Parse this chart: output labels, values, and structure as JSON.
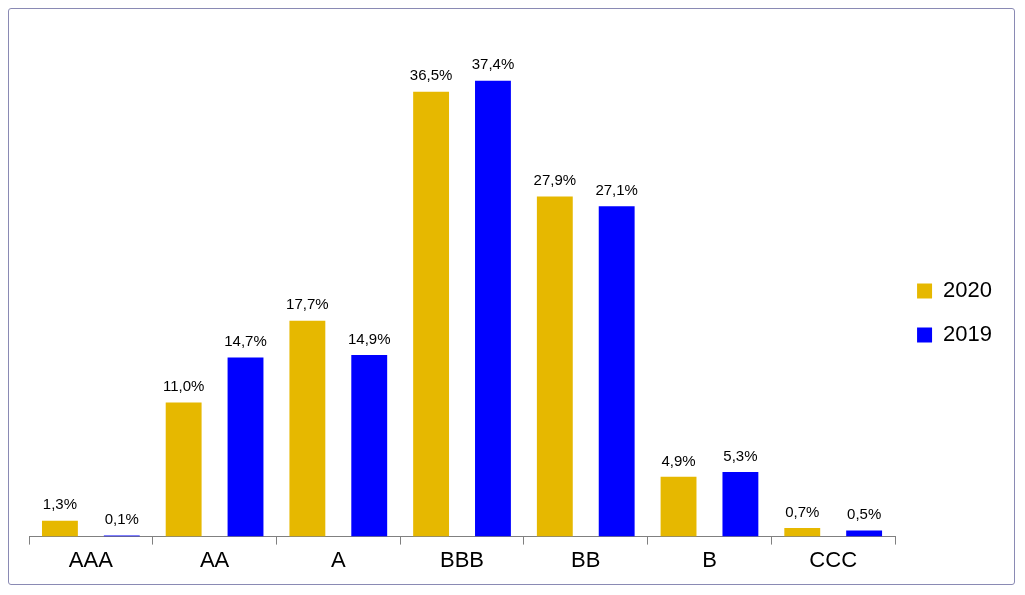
{
  "chart_data": {
    "type": "bar",
    "categories": [
      "AAA",
      "AA",
      "A",
      "BBB",
      "BB",
      "B",
      "CCC"
    ],
    "series": [
      {
        "name": "2020",
        "color": "#e6b800",
        "values": [
          1.3,
          11.0,
          17.7,
          36.5,
          27.9,
          4.9,
          0.7
        ],
        "value_labels": [
          "1,3%",
          "11,0%",
          "17,7%",
          "36,5%",
          "27,9%",
          "4,9%",
          "0,7%"
        ]
      },
      {
        "name": "2019",
        "color": "#0000ff",
        "values": [
          0.1,
          14.7,
          14.9,
          37.4,
          27.1,
          5.3,
          0.5
        ],
        "value_labels": [
          "0,1%",
          "14,7%",
          "14,9%",
          "37,4%",
          "27,1%",
          "5,3%",
          "0,5%"
        ]
      }
    ],
    "legend": "right",
    "grid": false
  }
}
